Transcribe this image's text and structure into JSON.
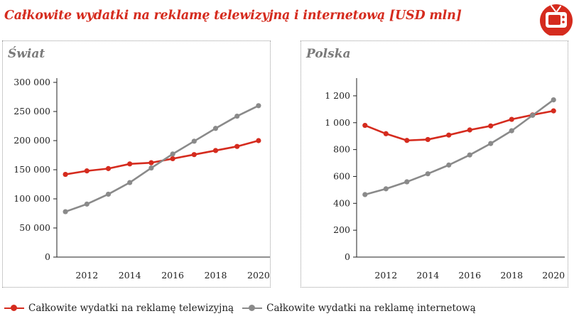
{
  "title": "Całkowite wydatki na reklamę telewizyjną i internetową [USD mln]",
  "colors": {
    "accent": "#d52b1e",
    "tv": "#d52b1e",
    "internet": "#8a8a8a",
    "axis": "#222222"
  },
  "icon": "tv-icon",
  "legend": {
    "tv": "Całkowite wydatki na reklamę telewizyjną",
    "internet": "Całkowite wydatki na reklamę internetową"
  },
  "chart_data": [
    {
      "type": "line",
      "title": "Świat",
      "x": [
        2011,
        2012,
        2013,
        2014,
        2015,
        2016,
        2017,
        2018,
        2019,
        2020
      ],
      "xticks": [
        2012,
        2014,
        2016,
        2018,
        2020
      ],
      "xtick_labels": [
        "2012",
        "2014",
        "2016",
        "2018",
        "2020"
      ],
      "xlim": [
        2010.6,
        2020.4
      ],
      "ylim": [
        0,
        300000
      ],
      "yticks": [
        0,
        50000,
        100000,
        150000,
        200000,
        250000,
        300000
      ],
      "ytick_labels": [
        "0",
        "50 000",
        "100 000",
        "150 000",
        "200 000",
        "250 000",
        "300 000"
      ],
      "series": [
        {
          "name": "Całkowite wydatki na reklamę telewizyjną",
          "key": "tv",
          "values": [
            142000,
            148000,
            152000,
            160000,
            162000,
            169000,
            176000,
            183000,
            190000,
            200000
          ]
        },
        {
          "name": "Całkowite wydatki na reklamę internetową",
          "key": "internet",
          "values": [
            78000,
            91000,
            108000,
            128000,
            153000,
            177000,
            199000,
            221000,
            242000,
            260000
          ]
        }
      ]
    },
    {
      "type": "line",
      "title": "Polska",
      "x": [
        2011,
        2012,
        2013,
        2014,
        2015,
        2016,
        2017,
        2018,
        2019,
        2020
      ],
      "xticks": [
        2012,
        2014,
        2016,
        2018,
        2020
      ],
      "xtick_labels": [
        "2012",
        "2014",
        "2016",
        "2018",
        "2020"
      ],
      "xlim": [
        2010.6,
        2020.4
      ],
      "ylim": [
        0,
        1300
      ],
      "yticks": [
        0,
        200,
        400,
        600,
        800,
        1000,
        1200
      ],
      "ytick_labels": [
        "0",
        "200",
        "400",
        "600",
        "800",
        "1 000",
        "1 200"
      ],
      "series": [
        {
          "name": "Całkowite wydatki na reklamę telewizyjną",
          "key": "tv",
          "values": [
            980,
            918,
            868,
            875,
            908,
            946,
            976,
            1025,
            1058,
            1088
          ]
        },
        {
          "name": "Całkowite wydatki na reklamę internetową",
          "key": "internet",
          "values": [
            465,
            508,
            560,
            620,
            685,
            760,
            845,
            940,
            1055,
            1170
          ]
        }
      ]
    }
  ]
}
